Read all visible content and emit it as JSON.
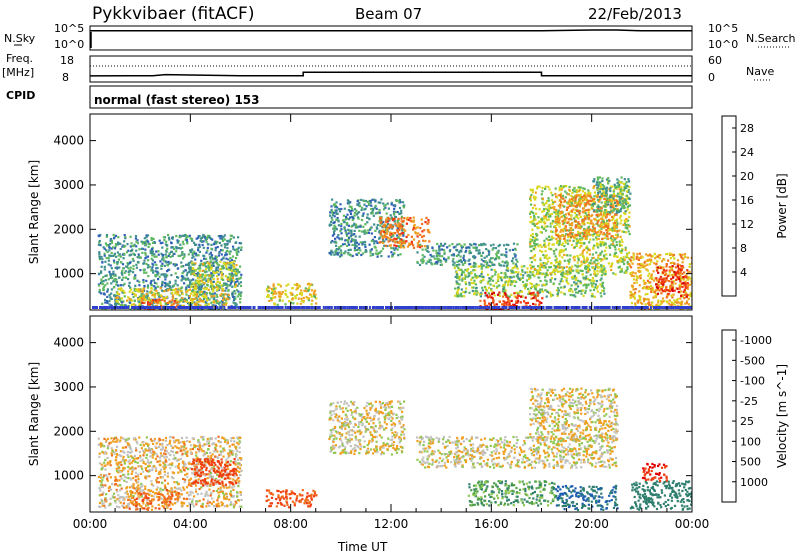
{
  "header": {
    "station": "Pykkvibaer (fitACF)",
    "beam": "Beam 07",
    "date": "22/Feb/2013"
  },
  "status_panels": {
    "nsky_label": "N.Sky",
    "nsky_ticks": [
      "10^5",
      "10^0"
    ],
    "nsearch_label": "N.Search",
    "nsearch_ticks": [
      "10^5",
      "10^0"
    ],
    "freq_label": "Freq.",
    "freq_unit": "[MHz]",
    "freq_ticks": [
      "18",
      "8"
    ],
    "nave_label": "Nave",
    "nave_ticks": [
      "60",
      "0"
    ],
    "cpid_label": "CPID",
    "cpid_text": "normal (fast stereo) 153"
  },
  "colors": {
    "frame": "#000000",
    "power_scale": [
      "#1f1fe6",
      "#2f5fb8",
      "#3f8f8f",
      "#5fb85f",
      "#d8d820",
      "#f0a020",
      "#f07020",
      "#f03010",
      "#d80000"
    ],
    "velocity_scale": [
      "#1a2fa0",
      "#1f5fb0",
      "#2f7f6f",
      "#4f9f4f",
      "#8fc84f",
      "#c8c8c0",
      "#bfbfbf",
      "#f0a020",
      "#f07020",
      "#f04010",
      "#e00000"
    ]
  },
  "chart_data": [
    {
      "type": "line",
      "name": "N.Sky / N.Search",
      "xlim": [
        0,
        24
      ],
      "x_unit": "hours UT",
      "series": [
        {
          "name": "N.Sky",
          "x": [
            0,
            1,
            2,
            4,
            6,
            8,
            10,
            12,
            14,
            16,
            18,
            19,
            20,
            21,
            22,
            24
          ],
          "y": [
            4.3,
            4.3,
            4.3,
            4.3,
            4.3,
            4.3,
            4.3,
            4.3,
            4.3,
            4.3,
            4.3,
            4.4,
            4.5,
            4.5,
            4.3,
            4.3
          ]
        },
        {
          "name": "N.Search",
          "x": [
            0,
            24
          ],
          "y": [
            4.1,
            4.1
          ]
        }
      ]
    },
    {
      "type": "line",
      "name": "Freq. / Nave",
      "xlim": [
        0,
        24
      ],
      "ylim_left": [
        8,
        18
      ],
      "ylim_right": [
        0,
        60
      ],
      "series": [
        {
          "name": "Freq.",
          "x": [
            0,
            2.5,
            3,
            6,
            8.5,
            8.5,
            18,
            18,
            24
          ],
          "y": [
            10.2,
            10.3,
            10.8,
            10.3,
            10.3,
            11.8,
            11.8,
            10.3,
            10.3
          ]
        },
        {
          "name": "Nave",
          "x": [
            0,
            24
          ],
          "y": [
            45,
            45
          ]
        }
      ]
    },
    {
      "type": "heatmap",
      "name": "power",
      "xlim": [
        0,
        24
      ],
      "xlabel": "",
      "xticks": [
        "00:00",
        "04:00",
        "08:00",
        "12:00",
        "16:00",
        "20:00",
        "00:00"
      ],
      "ylabel": "Slant Range [km]",
      "ylim": [
        180,
        4600
      ],
      "yticks": [
        1000,
        2000,
        3000,
        4000
      ],
      "colorbar_label": "Power [dB]",
      "colorbar_ticks": [
        4,
        8,
        12,
        16,
        20,
        24,
        28
      ],
      "colorbar_range": [
        0,
        30
      ],
      "regions": [
        {
          "x": [
            0.3,
            6.0
          ],
          "y": [
            200,
            1900
          ],
          "level": 8
        },
        {
          "x": [
            1.0,
            5.5
          ],
          "y": [
            250,
            700
          ],
          "level": 16
        },
        {
          "x": [
            2.0,
            3.5
          ],
          "y": [
            200,
            450
          ],
          "level": 24
        },
        {
          "x": [
            4.0,
            5.8
          ],
          "y": [
            700,
            1300
          ],
          "level": 14
        },
        {
          "x": [
            7.0,
            9.0
          ],
          "y": [
            300,
            800
          ],
          "level": 16
        },
        {
          "x": [
            9.5,
            12.5
          ],
          "y": [
            1400,
            2700
          ],
          "level": 8
        },
        {
          "x": [
            11.5,
            13.5
          ],
          "y": [
            1600,
            2300
          ],
          "level": 22
        },
        {
          "x": [
            13.0,
            17.0
          ],
          "y": [
            1200,
            1700
          ],
          "level": 8
        },
        {
          "x": [
            14.5,
            20.5
          ],
          "y": [
            500,
            1200
          ],
          "level": 12
        },
        {
          "x": [
            15.5,
            18.0
          ],
          "y": [
            200,
            600
          ],
          "level": 26
        },
        {
          "x": [
            17.5,
            21.5
          ],
          "y": [
            1000,
            3000
          ],
          "level": 14
        },
        {
          "x": [
            18.5,
            21.0
          ],
          "y": [
            1800,
            2800
          ],
          "level": 20
        },
        {
          "x": [
            21.5,
            24.0
          ],
          "y": [
            200,
            1500
          ],
          "level": 18
        },
        {
          "x": [
            22.5,
            23.8
          ],
          "y": [
            500,
            1200
          ],
          "level": 26
        },
        {
          "x": [
            20.0,
            21.5
          ],
          "y": [
            2400,
            3200
          ],
          "level": 10
        }
      ]
    },
    {
      "type": "heatmap",
      "name": "velocity",
      "xlim": [
        0,
        24
      ],
      "xlabel": "Time UT",
      "xticks": [
        "00:00",
        "04:00",
        "08:00",
        "12:00",
        "16:00",
        "20:00",
        "00:00"
      ],
      "ylabel": "Slant Range [km]",
      "ylim": [
        180,
        4600
      ],
      "yticks": [
        1000,
        2000,
        3000,
        4000
      ],
      "colorbar_label": "Velocity [m s^-1]",
      "colorbar_ticks": [
        "1000",
        "500",
        "100",
        "25",
        "-25",
        "-100",
        "-500",
        "-1000"
      ],
      "regions": [
        {
          "x": [
            0.3,
            6.0
          ],
          "y": [
            300,
            1900
          ],
          "level": -25
        },
        {
          "x": [
            4.0,
            5.8
          ],
          "y": [
            800,
            1400
          ],
          "level": -300
        },
        {
          "x": [
            1.5,
            3.5
          ],
          "y": [
            250,
            700
          ],
          "level": -150
        },
        {
          "x": [
            7.0,
            9.0
          ],
          "y": [
            300,
            700
          ],
          "level": -200
        },
        {
          "x": [
            9.5,
            12.5
          ],
          "y": [
            1500,
            2700
          ],
          "level": 0
        },
        {
          "x": [
            13.0,
            21.0
          ],
          "y": [
            1200,
            1900
          ],
          "level": 0
        },
        {
          "x": [
            15.0,
            18.5
          ],
          "y": [
            350,
            900
          ],
          "level": 150
        },
        {
          "x": [
            18.5,
            21.0
          ],
          "y": [
            250,
            800
          ],
          "level": 500
        },
        {
          "x": [
            17.5,
            21.0
          ],
          "y": [
            1800,
            3000
          ],
          "level": 0
        },
        {
          "x": [
            21.5,
            24.0
          ],
          "y": [
            250,
            900
          ],
          "level": 300
        },
        {
          "x": [
            22.0,
            23.0
          ],
          "y": [
            900,
            1300
          ],
          "level": -500
        }
      ]
    }
  ]
}
